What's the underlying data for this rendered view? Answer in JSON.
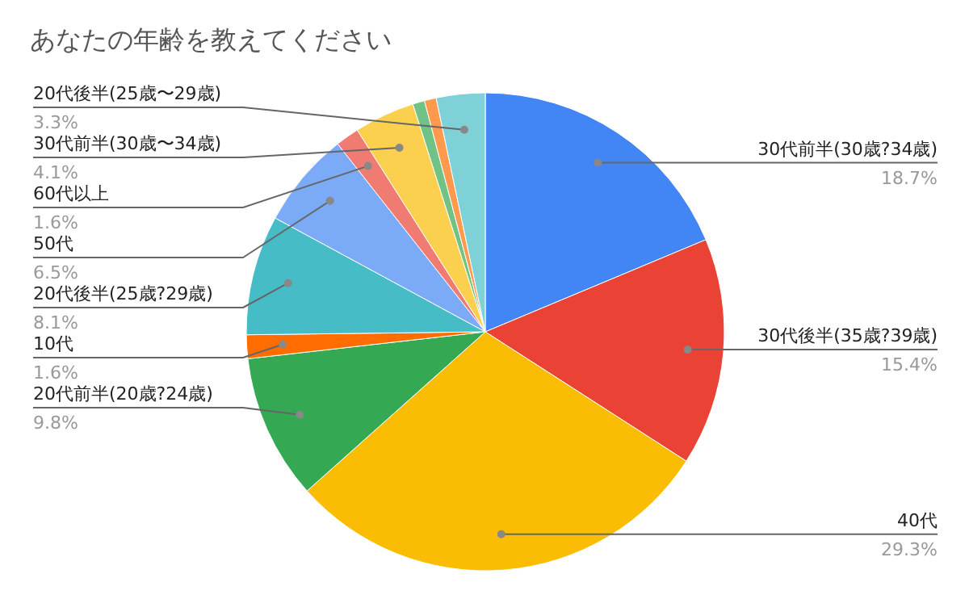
{
  "chart_data": {
    "type": "pie",
    "title": "あなたの年齢を教えてください",
    "categories": [
      "30代前半(30歳?34歳)",
      "30代後半(35歳?39歳)",
      "40代",
      "20代前半(20歳?24歳)",
      "10代",
      "20代後半(25歳?29歳)",
      "50代",
      "60代以上",
      "30代前半(30歳〜34歳)",
      null,
      null,
      "20代後半(25歳〜29歳)"
    ],
    "values": [
      18.7,
      15.4,
      29.3,
      9.8,
      1.6,
      8.1,
      6.5,
      1.6,
      4.1,
      0.8,
      0.8,
      3.3
    ],
    "value_labels": [
      "18.7%",
      "15.4%",
      "29.3%",
      "9.8%",
      "1.6%",
      "8.1%",
      "6.5%",
      "1.6%",
      "4.1%",
      null,
      null,
      "3.3%"
    ],
    "colors": [
      "#4285f4",
      "#ea4335",
      "#fbbc04",
      "#34a853",
      "#ff6d01",
      "#46bdc6",
      "#7baaf7",
      "#f07b72",
      "#fcd04f",
      "#71c287",
      "#ff994d",
      "#7ed1d7"
    ]
  }
}
